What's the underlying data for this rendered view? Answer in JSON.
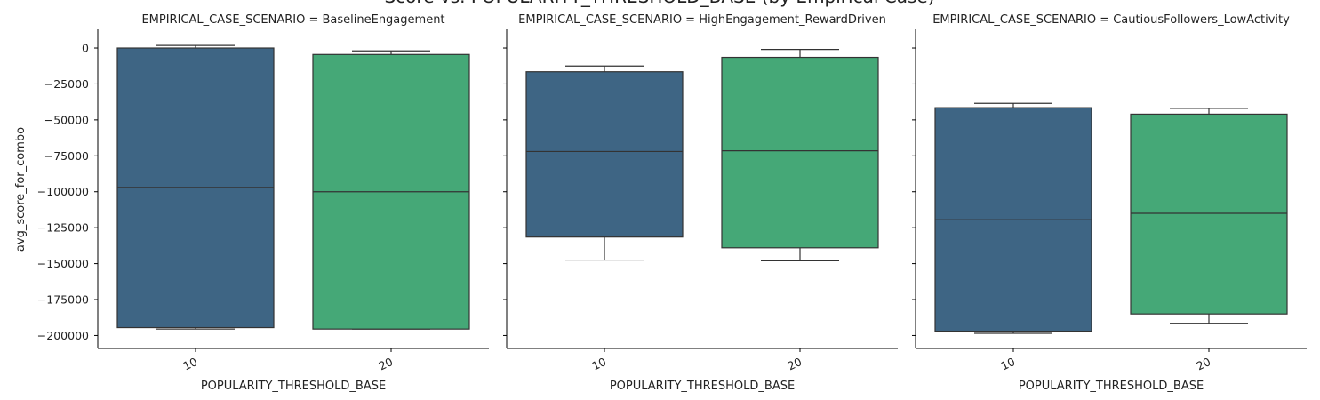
{
  "chart_data": {
    "type": "box",
    "title": "Score vs. POPULARITY_THRESHOLD_BASE (by Empirical Case)",
    "ylabel": "avg_score_for_combo",
    "ylim": [
      -209000,
      13000
    ],
    "yticks": [
      0,
      -25000,
      -50000,
      -75000,
      -100000,
      -125000,
      -150000,
      -175000,
      -200000
    ],
    "ytick_labels": [
      "0",
      "−25000",
      "−50000",
      "−75000",
      "−100000",
      "−125000",
      "−150000",
      "−175000",
      "−200000"
    ],
    "colors": {
      "10": "#3e6584",
      "20": "#45a877",
      "edge": "#333333"
    },
    "facets": [
      {
        "title": "EMPIRICAL_CASE_SCENARIO = BaselineEngagement",
        "xlabel": "POPULARITY_THRESHOLD_BASE",
        "categories": [
          "10",
          "20"
        ],
        "boxes": [
          {
            "category": "10",
            "whisker_low": -195500,
            "q1": -194500,
            "median": -97000,
            "q3": 0,
            "whisker_high": 1800
          },
          {
            "category": "20",
            "whisker_low": -195500,
            "q1": -195500,
            "median": -100000,
            "q3": -4500,
            "whisker_high": -2000
          }
        ]
      },
      {
        "title": "EMPIRICAL_CASE_SCENARIO = HighEngagement_RewardDriven",
        "xlabel": "POPULARITY_THRESHOLD_BASE",
        "categories": [
          "10",
          "20"
        ],
        "boxes": [
          {
            "category": "10",
            "whisker_low": -147500,
            "q1": -131500,
            "median": -72000,
            "q3": -16500,
            "whisker_high": -12500
          },
          {
            "category": "20",
            "whisker_low": -148000,
            "q1": -139000,
            "median": -71500,
            "q3": -6500,
            "whisker_high": -1000
          }
        ]
      },
      {
        "title": "EMPIRICAL_CASE_SCENARIO = CautiousFollowers_LowActivity",
        "xlabel": "POPULARITY_THRESHOLD_BASE",
        "categories": [
          "10",
          "20"
        ],
        "boxes": [
          {
            "category": "10",
            "whisker_low": -198500,
            "q1": -197000,
            "median": -119500,
            "q3": -41500,
            "whisker_high": -38500
          },
          {
            "category": "20",
            "whisker_low": -191500,
            "q1": -185000,
            "median": -115000,
            "q3": -46000,
            "whisker_high": -42000
          }
        ]
      }
    ]
  }
}
